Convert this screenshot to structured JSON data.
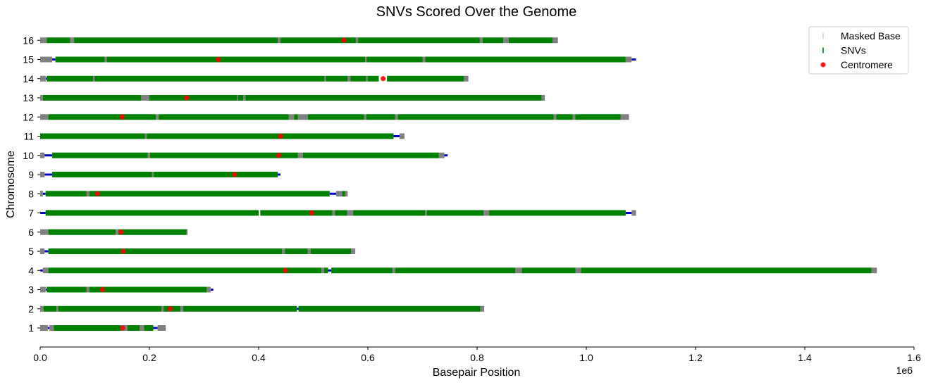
{
  "chart_data": {
    "type": "scatter",
    "title": "SNVs Scored Over the Genome",
    "xlabel": "Basepair Position",
    "ylabel": "Chromosome",
    "x_offset_label": "1e6",
    "xlim": [
      0,
      1600000
    ],
    "x_ticks": [
      0,
      200000,
      400000,
      600000,
      800000,
      1000000,
      1200000,
      1400000,
      1600000
    ],
    "x_tick_labels": [
      "0.0",
      "0.2",
      "0.4",
      "0.6",
      "0.8",
      "1.0",
      "1.2",
      "1.4",
      "1.6"
    ],
    "chromosomes": [
      "1",
      "2",
      "3",
      "4",
      "5",
      "6",
      "7",
      "8",
      "9",
      "10",
      "11",
      "12",
      "13",
      "14",
      "15",
      "16"
    ],
    "legend_position": "top-right",
    "legend": [
      {
        "label": "Masked Base",
        "color": "#d3d3d3",
        "marker": "vline"
      },
      {
        "label": "SNVs",
        "color": "#008000",
        "marker": "vline"
      },
      {
        "label": "Centromere",
        "color": "#ff0000",
        "marker": "dot"
      }
    ],
    "colors": {
      "snv": "#008000",
      "masked": "#808080",
      "gap": "#0000cc",
      "centromere": "#ff0000"
    },
    "series": [
      {
        "chromosome": "1",
        "length": 230000,
        "centromere": 151000,
        "snv": [
          [
            25000,
            148000
          ],
          [
            160000,
            182000
          ],
          [
            190000,
            207000
          ]
        ],
        "masked": [
          [
            0,
            14000
          ],
          [
            17000,
            25000
          ],
          [
            148000,
            160000
          ],
          [
            182000,
            190000
          ],
          [
            215000,
            230000
          ]
        ],
        "gaps": [
          [
            14000,
            17000
          ],
          [
            207000,
            215000
          ]
        ]
      },
      {
        "chromosome": "2",
        "length": 813000,
        "centromere": 238000,
        "snv": [
          [
            6000,
            30000
          ],
          [
            33000,
            222000
          ],
          [
            226000,
            257000
          ],
          [
            262000,
            470000
          ],
          [
            473000,
            806000
          ]
        ],
        "masked": [
          [
            0,
            6000
          ],
          [
            30000,
            33000
          ],
          [
            222000,
            226000
          ],
          [
            257000,
            262000
          ],
          [
            806000,
            813000
          ]
        ],
        "gaps": [
          [
            470000,
            473000
          ]
        ]
      },
      {
        "chromosome": "3",
        "length": 317000,
        "centromere": 114000,
        "snv": [
          [
            12000,
            85000
          ],
          [
            90000,
            305000
          ]
        ],
        "masked": [
          [
            0,
            10000
          ],
          [
            85000,
            90000
          ],
          [
            305000,
            312000
          ]
        ],
        "gaps": [
          [
            10000,
            12000
          ],
          [
            312000,
            317000
          ]
        ]
      },
      {
        "chromosome": "4",
        "length": 1532000,
        "centromere": 449000,
        "snv": [
          [
            15000,
            515000
          ],
          [
            520000,
            527000
          ],
          [
            533000,
            645000
          ],
          [
            650000,
            870000
          ],
          [
            882000,
            980000
          ],
          [
            990000,
            1522000
          ]
        ],
        "masked": [
          [
            5000,
            15000
          ],
          [
            515000,
            520000
          ],
          [
            645000,
            650000
          ],
          [
            870000,
            882000
          ],
          [
            980000,
            990000
          ],
          [
            1522000,
            1532000
          ]
        ],
        "gaps": [
          [
            0,
            5000
          ],
          [
            527000,
            533000
          ]
        ]
      },
      {
        "chromosome": "5",
        "length": 577000,
        "centromere": 152000,
        "snv": [
          [
            15000,
            443000
          ],
          [
            448000,
            490000
          ],
          [
            495000,
            569000
          ]
        ],
        "masked": [
          [
            0,
            8000
          ],
          [
            443000,
            448000
          ],
          [
            490000,
            495000
          ],
          [
            569000,
            577000
          ]
        ],
        "gaps": [
          [
            8000,
            15000
          ]
        ]
      },
      {
        "chromosome": "6",
        "length": 270000,
        "centromere": 148000,
        "snv": [
          [
            15000,
            138000
          ],
          [
            143000,
            268000
          ]
        ],
        "masked": [
          [
            0,
            15000
          ],
          [
            138000,
            143000
          ],
          [
            268000,
            270000
          ]
        ],
        "gaps": []
      },
      {
        "chromosome": "7",
        "length": 1091000,
        "centromere": 497000,
        "snv": [
          [
            10000,
            400000
          ],
          [
            403000,
            535000
          ],
          [
            540000,
            562000
          ],
          [
            573000,
            705000
          ],
          [
            708000,
            812000
          ],
          [
            822000,
            1072000
          ]
        ],
        "masked": [
          [
            535000,
            540000
          ],
          [
            562000,
            573000
          ],
          [
            705000,
            708000
          ],
          [
            812000,
            822000
          ],
          [
            1083000,
            1091000
          ]
        ],
        "gaps": [
          [
            0,
            10000
          ],
          [
            1072000,
            1083000
          ]
        ]
      },
      {
        "chromosome": "8",
        "length": 563000,
        "centromere": 105000,
        "snv": [
          [
            10000,
            85000
          ],
          [
            90000,
            530000
          ],
          [
            553000,
            558000
          ]
        ],
        "masked": [
          [
            0,
            5000
          ],
          [
            85000,
            90000
          ],
          [
            542000,
            553000
          ],
          [
            558000,
            563000
          ]
        ],
        "gaps": [
          [
            5000,
            10000
          ],
          [
            530000,
            542000
          ]
        ]
      },
      {
        "chromosome": "9",
        "length": 440000,
        "centromere": 356000,
        "snv": [
          [
            22000,
            205000
          ],
          [
            208000,
            435000
          ]
        ],
        "masked": [
          [
            0,
            8000
          ],
          [
            205000,
            208000
          ]
        ],
        "gaps": [
          [
            8000,
            22000
          ],
          [
            435000,
            440000
          ]
        ]
      },
      {
        "chromosome": "10",
        "length": 746000,
        "centromere": 437000,
        "snv": [
          [
            22000,
            197000
          ],
          [
            201000,
            472000
          ],
          [
            481000,
            730000
          ]
        ],
        "masked": [
          [
            0,
            8000
          ],
          [
            197000,
            201000
          ],
          [
            472000,
            481000
          ],
          [
            730000,
            740000
          ]
        ],
        "gaps": [
          [
            8000,
            22000
          ],
          [
            740000,
            746000
          ]
        ]
      },
      {
        "chromosome": "11",
        "length": 667000,
        "centromere": 440000,
        "snv": [
          [
            0,
            192000
          ],
          [
            195000,
            647000
          ]
        ],
        "masked": [
          [
            192000,
            195000
          ],
          [
            658000,
            667000
          ]
        ],
        "gaps": [
          [
            647000,
            658000
          ]
        ]
      },
      {
        "chromosome": "12",
        "length": 1078000,
        "centromere": 150000,
        "snv": [
          [
            15000,
            212000
          ],
          [
            217000,
            455000
          ],
          [
            465000,
            472000
          ],
          [
            490000,
            593000
          ],
          [
            597000,
            650000
          ],
          [
            655000,
            940000
          ],
          [
            945000,
            975000
          ],
          [
            980000,
            1063000
          ]
        ],
        "masked": [
          [
            0,
            15000
          ],
          [
            212000,
            217000
          ],
          [
            455000,
            465000
          ],
          [
            472000,
            490000
          ],
          [
            593000,
            597000
          ],
          [
            650000,
            655000
          ],
          [
            940000,
            945000
          ],
          [
            975000,
            980000
          ],
          [
            1063000,
            1078000
          ]
        ],
        "gaps": []
      },
      {
        "chromosome": "13",
        "length": 924000,
        "centromere": 268000,
        "snv": [
          [
            5000,
            185000
          ],
          [
            200000,
            360000
          ],
          [
            362000,
            372000
          ],
          [
            376000,
            918000
          ]
        ],
        "masked": [
          [
            0,
            5000
          ],
          [
            185000,
            200000
          ],
          [
            360000,
            362000
          ],
          [
            372000,
            376000
          ],
          [
            918000,
            924000
          ]
        ],
        "gaps": []
      },
      {
        "chromosome": "14",
        "length": 784000,
        "centromere": 628000,
        "snv": [
          [
            12000,
            97000
          ],
          [
            100000,
            520000
          ],
          [
            523000,
            563000
          ],
          [
            568000,
            597000
          ],
          [
            600000,
            620000
          ],
          [
            635000,
            776000
          ]
        ],
        "masked": [
          [
            0,
            10000
          ],
          [
            97000,
            100000
          ],
          [
            520000,
            523000
          ],
          [
            563000,
            568000
          ],
          [
            597000,
            600000
          ],
          [
            776000,
            784000
          ]
        ],
        "gaps": [
          [
            10000,
            12000
          ]
        ]
      },
      {
        "chromosome": "15",
        "length": 1091000,
        "centromere": 326000,
        "snv": [
          [
            28000,
            118000
          ],
          [
            122000,
            595000
          ],
          [
            598000,
            700000
          ],
          [
            705000,
            1072000
          ]
        ],
        "masked": [
          [
            0,
            22000
          ],
          [
            118000,
            122000
          ],
          [
            595000,
            598000
          ],
          [
            700000,
            705000
          ],
          [
            1072000,
            1083000
          ]
        ],
        "gaps": [
          [
            22000,
            28000
          ],
          [
            1083000,
            1091000
          ]
        ]
      },
      {
        "chromosome": "16",
        "length": 948000,
        "centromere": 556000,
        "snv": [
          [
            12000,
            55000
          ],
          [
            62000,
            435000
          ],
          [
            440000,
            578000
          ],
          [
            582000,
            805000
          ],
          [
            810000,
            848000
          ],
          [
            858000,
            938000
          ]
        ],
        "masked": [
          [
            0,
            12000
          ],
          [
            55000,
            62000
          ],
          [
            435000,
            440000
          ],
          [
            578000,
            582000
          ],
          [
            805000,
            810000
          ],
          [
            848000,
            858000
          ],
          [
            938000,
            948000
          ]
        ],
        "gaps": []
      }
    ]
  }
}
